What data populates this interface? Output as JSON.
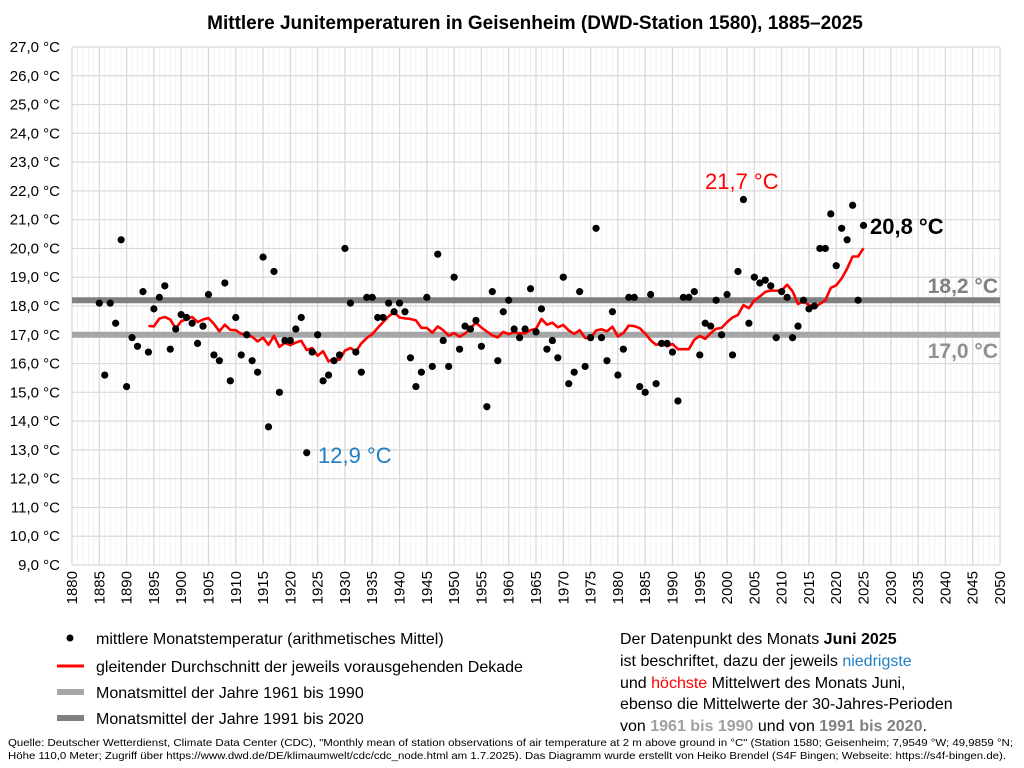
{
  "chart_data": {
    "type": "scatter",
    "title": "Mittlere Junitemperaturen in Geisenheim (DWD-Station 1580), 1885–2025",
    "xlim": [
      1880,
      2050
    ],
    "ylim": [
      9.0,
      27.0
    ],
    "x_tick_step": 5,
    "y_tick_step": 1,
    "y_tick_suffix": " °C",
    "grid": true,
    "x_start": 1885,
    "values": [
      18.1,
      15.6,
      18.1,
      17.4,
      20.3,
      15.2,
      16.9,
      16.6,
      18.5,
      16.4,
      17.9,
      18.3,
      18.7,
      16.5,
      17.2,
      17.7,
      17.6,
      17.4,
      16.7,
      17.3,
      18.4,
      16.3,
      16.1,
      18.8,
      15.4,
      17.6,
      16.3,
      17.0,
      16.1,
      15.7,
      19.7,
      13.8,
      19.2,
      15.0,
      16.8,
      16.8,
      17.2,
      17.6,
      12.9,
      16.4,
      17.0,
      15.4,
      15.6,
      16.1,
      16.3,
      20.0,
      18.1,
      16.4,
      15.7,
      18.3,
      18.3,
      17.6,
      17.6,
      18.1,
      17.8,
      18.1,
      17.8,
      16.2,
      15.2,
      15.7,
      18.3,
      15.9,
      19.8,
      16.8,
      15.9,
      19.0,
      16.5,
      17.3,
      17.2,
      17.5,
      16.6,
      14.5,
      18.5,
      16.1,
      17.8,
      18.2,
      17.2,
      16.9,
      17.2,
      18.6,
      17.1,
      17.9,
      16.5,
      16.8,
      16.2,
      19.0,
      15.3,
      15.7,
      18.5,
      15.9,
      16.9,
      20.7,
      16.9,
      16.1,
      17.8,
      15.6,
      16.5,
      18.3,
      18.3,
      15.2,
      15.0,
      18.4,
      15.3,
      16.7,
      16.7,
      16.4,
      14.7,
      18.3,
      18.3,
      18.5,
      16.3,
      17.4,
      17.3,
      18.2,
      17.0,
      18.4,
      16.3,
      19.2,
      21.7,
      17.4,
      19.0,
      18.8,
      18.9,
      18.7,
      16.9,
      18.5,
      18.3,
      16.9,
      17.3,
      18.2,
      17.9,
      18.0,
      20.0,
      20.0,
      21.2,
      19.4,
      20.7,
      20.3,
      21.5,
      18.2,
      20.8
    ],
    "series": [
      {
        "name": "mittlere Monatstemperatur (arithmetisches Mittel)",
        "kind": "points",
        "color": "#000000"
      },
      {
        "name": "gleitender Durchschnitt der jeweils vorausgehenden Dekade",
        "kind": "moving-average",
        "window": 10,
        "color": "#ff0000"
      },
      {
        "name": "Monatsmittel der Jahre 1961 bis 1990",
        "kind": "hline",
        "value": 17.0,
        "color": "#a6a6a6"
      },
      {
        "name": "Monatsmittel der Jahre 1991 bis 2020",
        "kind": "hline",
        "value": 18.2,
        "color": "#808080"
      }
    ],
    "annotations": [
      {
        "text": "21,7 °C",
        "year": 2003,
        "value": 21.7,
        "color": "#ff0000"
      },
      {
        "text": "12,9 °C",
        "year": 1923,
        "value": 12.9,
        "color": "#1f7fc4"
      },
      {
        "text": "20,8 °C",
        "year": 2025,
        "value": 20.8,
        "color": "#000000"
      },
      {
        "text": "18,2 °C",
        "value": 18.2,
        "color": "#808080"
      },
      {
        "text": "17,0 °C",
        "value": 17.0,
        "color": "#909090"
      }
    ]
  },
  "legend": {
    "items": [
      "mittlere Monatstemperatur (arithmetisches Mittel)",
      "gleitender Durchschnitt der jeweils vorausgehenden Dekade",
      "Monatsmittel der Jahre 1961 bis 1990",
      "Monatsmittel der Jahre 1991 bis 2020"
    ]
  },
  "note": {
    "l1a": "Der Datenpunkt des Monats ",
    "l1b": "Juni 2025",
    "l2a": "ist beschriftet, dazu der jeweils ",
    "l2b": "niedrigste",
    "l3a": "und ",
    "l3b": "höchste",
    "l3c": " Mittelwert des Monats Juni,",
    "l4": "ebenso die Mittelwerte der 30-Jahres-Perioden",
    "l5a": "von ",
    "l5b": "1961 bis 1990",
    "l5c": " und von ",
    "l5d": "1991 bis 2020",
    "l5e": "."
  },
  "source": {
    "line1": "Quelle: Deutscher Wetterdienst, Climate Data Center (CDC), \"Monthly mean of station observations of air temperature at 2 m above ground in °C\" (Station 1580; Geisenheim; 7,9549 °W; 49,9859 °N;",
    "line2": "Höhe 110,0 Meter; Zugriff über https://www.dwd.de/DE/klimaumwelt/cdc/cdc_node.html am 1.7.2025). Das Diagramm wurde erstellt von Heiko Brendel (S4F Bingen; Webseite: https://s4f-bingen.de)."
  }
}
